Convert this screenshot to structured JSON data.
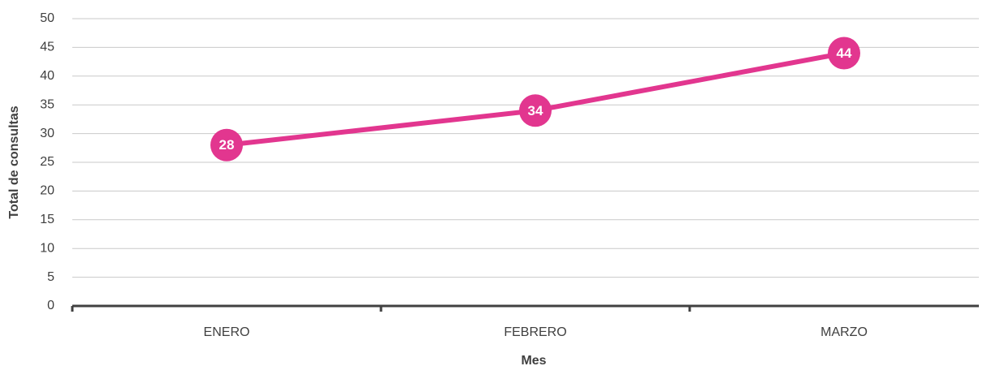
{
  "chart_data": {
    "type": "line",
    "x_label": "Mes",
    "y_label": "Total de consultas",
    "categories": [
      "ENERO",
      "FEBRERO",
      "MARZO"
    ],
    "series": [
      {
        "name": "Total de consultas",
        "color": "#e2368f",
        "values": [
          28,
          34,
          44
        ]
      }
    ],
    "ylim": [
      0,
      50
    ],
    "yticks": [
      0,
      5,
      10,
      15,
      20,
      25,
      30,
      35,
      40,
      45,
      50
    ],
    "grid": true
  }
}
